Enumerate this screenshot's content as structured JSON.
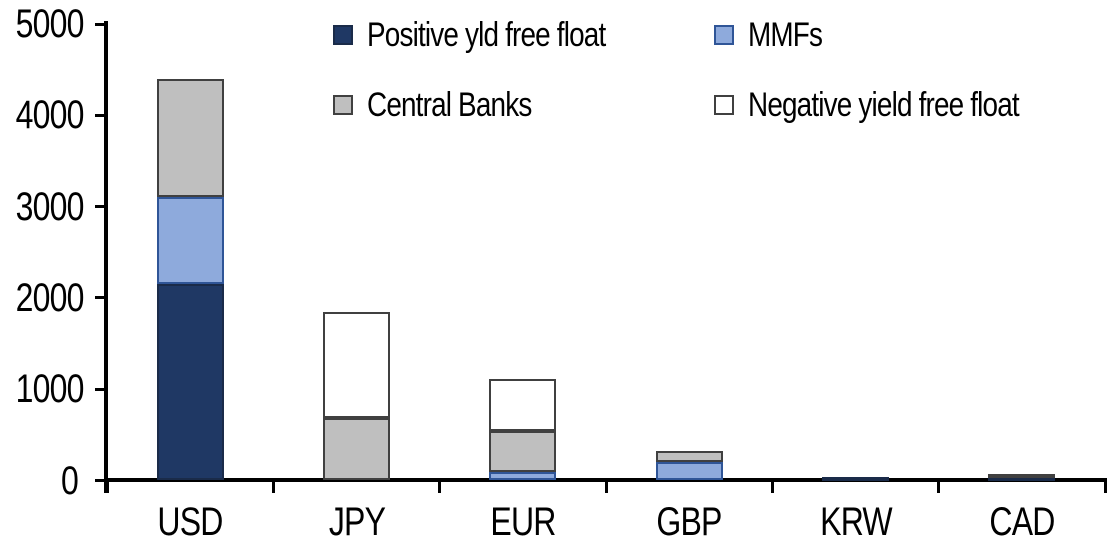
{
  "chart_data": {
    "type": "bar",
    "stacked": true,
    "title": "",
    "xlabel": "",
    "ylabel": "",
    "grid": false,
    "legend_position": "top",
    "ylim": [
      0,
      5000
    ],
    "yticks": [
      0,
      1000,
      2000,
      3000,
      4000,
      5000
    ],
    "categories": [
      "USD",
      "JPY",
      "EUR",
      "GBP",
      "KRW",
      "CAD"
    ],
    "series": [
      {
        "name": "Positive yld free float",
        "fill": "#1F3864",
        "border": "#1A2B49",
        "values": [
          2150,
          0,
          0,
          0,
          40,
          35
        ]
      },
      {
        "name": "MMFs",
        "fill": "#8EAADC",
        "border": "#2F5597",
        "values": [
          950,
          0,
          90,
          200,
          0,
          0
        ]
      },
      {
        "name": "Central Banks",
        "fill": "#BFBFBF",
        "border": "#404040",
        "values": [
          1300,
          690,
          450,
          120,
          0,
          35
        ]
      },
      {
        "name": "Negative yield free float",
        "fill": "#FFFFFF",
        "border": "#404040",
        "values": [
          0,
          1160,
          570,
          0,
          0,
          0
        ]
      }
    ]
  },
  "colors": {
    "background": "#FFFFFF",
    "axis": "#000000",
    "text": "#000000"
  }
}
